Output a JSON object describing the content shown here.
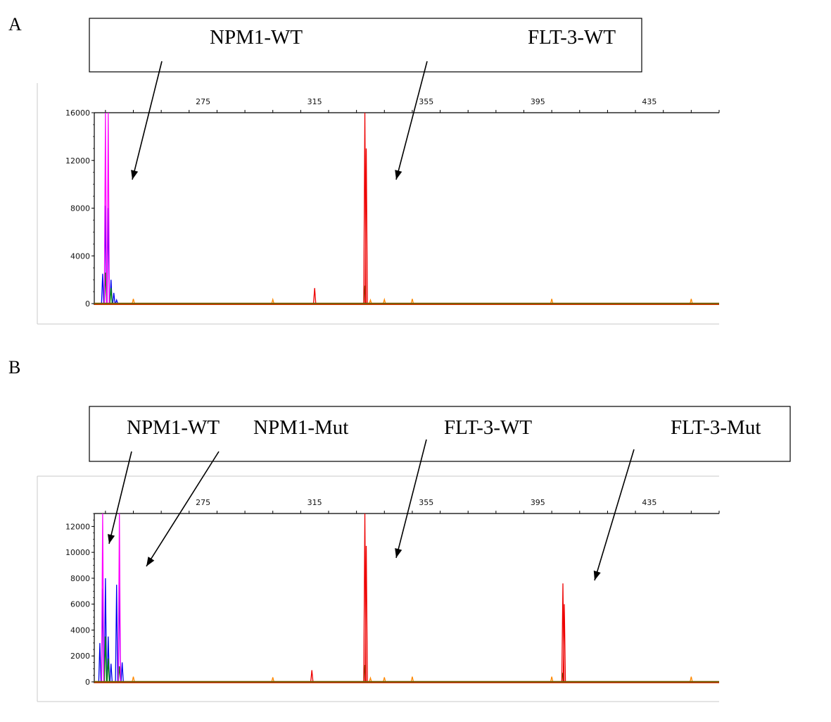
{
  "panels": [
    {
      "letter": "A",
      "labels": [
        "NPM1-WT",
        "FLT-3-WT"
      ]
    },
    {
      "letter": "B",
      "labels": [
        "NPM1-WT",
        "NPM1-Mut",
        "FLT-3-WT",
        "FLT-3-Mut"
      ]
    }
  ],
  "chart_data": [
    {
      "type": "line",
      "panel": "A",
      "x_ticks": [
        275,
        315,
        355,
        395,
        435
      ],
      "y_ticks": [
        0,
        4000,
        8000,
        12000,
        16000
      ],
      "xlim": [
        236,
        460
      ],
      "ylim": [
        0,
        16000
      ],
      "grid": false,
      "series": [
        {
          "color": "#0000ee",
          "peaks": [
            [
              239,
              2500
            ],
            [
              240,
              8200
            ],
            [
              241,
              8000
            ],
            [
              242,
              2000
            ],
            [
              243,
              900
            ],
            [
              244,
              300
            ]
          ]
        },
        {
          "color": "#008800",
          "peaks": [
            [
              240,
              2600
            ],
            [
              242,
              1300
            ],
            [
              333,
              1500
            ]
          ]
        },
        {
          "color": "#ee0000",
          "peaks": [
            [
              315,
              1300
            ],
            [
              333,
              16000
            ],
            [
              333.5,
              13000
            ]
          ]
        },
        {
          "color": "#ff00ff",
          "peaks": [
            [
              240,
              16000
            ],
            [
              241,
              16000
            ]
          ]
        },
        {
          "color": "#ff8800",
          "peaks": [
            [
              250,
              400
            ],
            [
              300,
              350
            ],
            [
              335,
              300
            ],
            [
              340,
              350
            ],
            [
              350,
              400
            ],
            [
              400,
              400
            ],
            [
              450,
              400
            ]
          ]
        }
      ]
    },
    {
      "type": "line",
      "panel": "B",
      "x_ticks": [
        275,
        315,
        355,
        395,
        435
      ],
      "y_ticks": [
        0,
        2000,
        4000,
        6000,
        8000,
        10000,
        12000
      ],
      "xlim": [
        236,
        460
      ],
      "ylim": [
        0,
        13000
      ],
      "grid": false,
      "series": [
        {
          "color": "#0000ee",
          "peaks": [
            [
              238,
              3000
            ],
            [
              239,
              7200
            ],
            [
              240,
              8000
            ],
            [
              241,
              3500
            ],
            [
              242,
              1400
            ],
            [
              244,
              7500
            ],
            [
              245,
              8000
            ],
            [
              246,
              1500
            ]
          ]
        },
        {
          "color": "#008800",
          "peaks": [
            [
              240,
              3500
            ],
            [
              241,
              1800
            ],
            [
              245,
              1200
            ],
            [
              333,
              1300
            ],
            [
              404,
              700
            ]
          ]
        },
        {
          "color": "#ee0000",
          "peaks": [
            [
              314,
              900
            ],
            [
              333,
              13000
            ],
            [
              333.5,
              10500
            ],
            [
              404,
              7600
            ],
            [
              404.5,
              6000
            ]
          ]
        },
        {
          "color": "#ff00ff",
          "peaks": [
            [
              239,
              13000
            ],
            [
              245,
              13000
            ]
          ]
        },
        {
          "color": "#ff8800",
          "peaks": [
            [
              250,
              400
            ],
            [
              300,
              350
            ],
            [
              335,
              300
            ],
            [
              340,
              350
            ],
            [
              350,
              400
            ],
            [
              400,
              400
            ],
            [
              450,
              400
            ]
          ]
        }
      ]
    }
  ]
}
